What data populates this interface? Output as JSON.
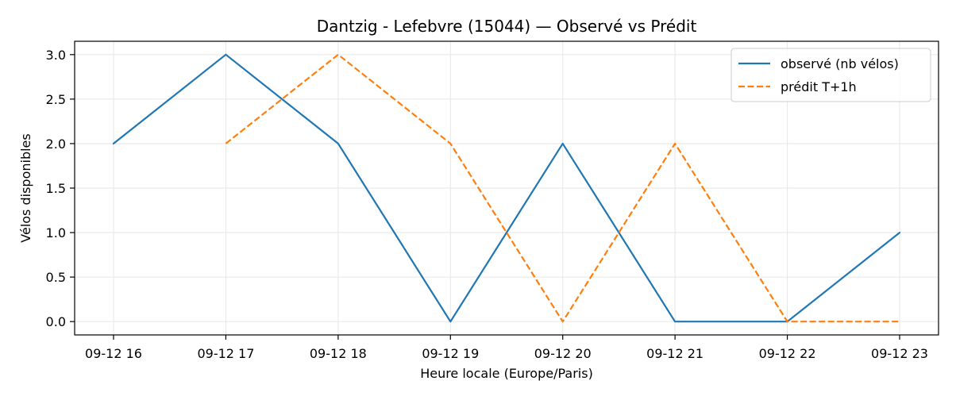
{
  "chart_data": {
    "type": "line",
    "title": "Dantzig - Lefebvre (15044) — Observé vs Prédit",
    "xlabel": "Heure locale (Europe/Paris)",
    "ylabel": "Vélos disponibles",
    "x": [
      "09-12 16",
      "09-12 17",
      "09-12 18",
      "09-12 19",
      "09-12 20",
      "09-12 21",
      "09-12 22",
      "09-12 23"
    ],
    "ylim": [
      -0.15,
      3.15
    ],
    "yticks": [
      "0.0",
      "0.5",
      "1.0",
      "1.5",
      "2.0",
      "2.5",
      "3.0"
    ],
    "grid": true,
    "legend_position": "top-right",
    "series": [
      {
        "name": "observé (nb vélos)",
        "color": "#1f77b4",
        "style": "solid",
        "values": [
          2,
          3,
          2,
          0,
          2,
          0,
          0,
          1
        ]
      },
      {
        "name": "prédit T+1h",
        "color": "#ff7f0e",
        "style": "dashed",
        "values": [
          null,
          2,
          3,
          2,
          0,
          2,
          0,
          0
        ]
      }
    ]
  }
}
